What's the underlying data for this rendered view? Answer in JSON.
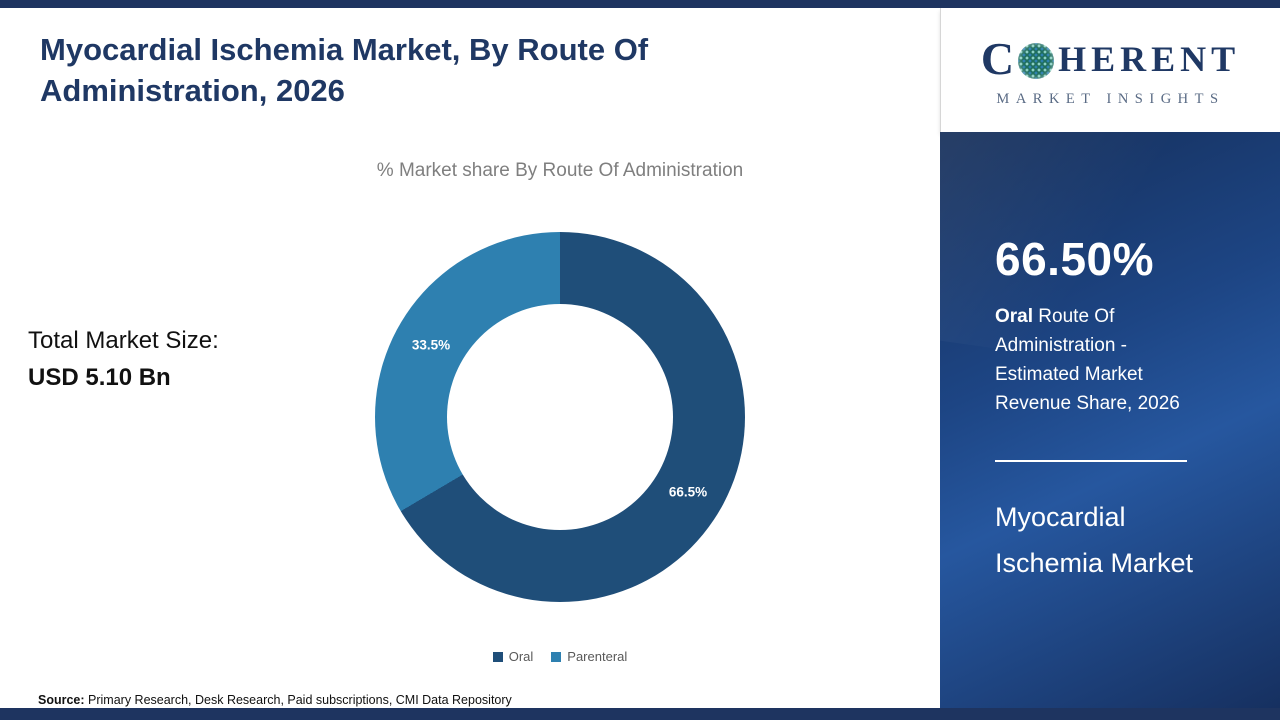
{
  "colors": {
    "navy_bar": "#1e3460",
    "title_text": "#1f3864",
    "subtitle_text": "#7f7f7f",
    "legend_text": "#595959"
  },
  "header": {
    "title": "Myocardial Ischemia Market, By Route Of Administration, 2026"
  },
  "logo": {
    "prefix": "C",
    "suffix": "HERENT",
    "subtitle": "MARKET INSIGHTS"
  },
  "left": {
    "total_label": "Total Market Size:",
    "total_value": "USD 5.10 Bn"
  },
  "chart_data": {
    "type": "pie",
    "donut": true,
    "title": "% Market share By Route Of Administration",
    "categories": [
      "Oral",
      "Parenteral"
    ],
    "values": [
      66.5,
      33.5
    ],
    "slice_labels": [
      "66.5%",
      "33.5%"
    ],
    "colors": [
      "#1f4e79",
      "#2e80b0"
    ],
    "legend_position": "bottom",
    "start_angle_deg": 0,
    "direction": "clockwise"
  },
  "right_panel": {
    "headline": "66.50%",
    "desc_bold": "Oral",
    "desc_rest": " Route Of Administration - Estimated Market Revenue Share, 2026",
    "market_title": "Myocardial Ischemia Market"
  },
  "source": {
    "label": "Source:",
    "text": " Primary Research, Desk Research, Paid subscriptions, CMI Data Repository"
  }
}
